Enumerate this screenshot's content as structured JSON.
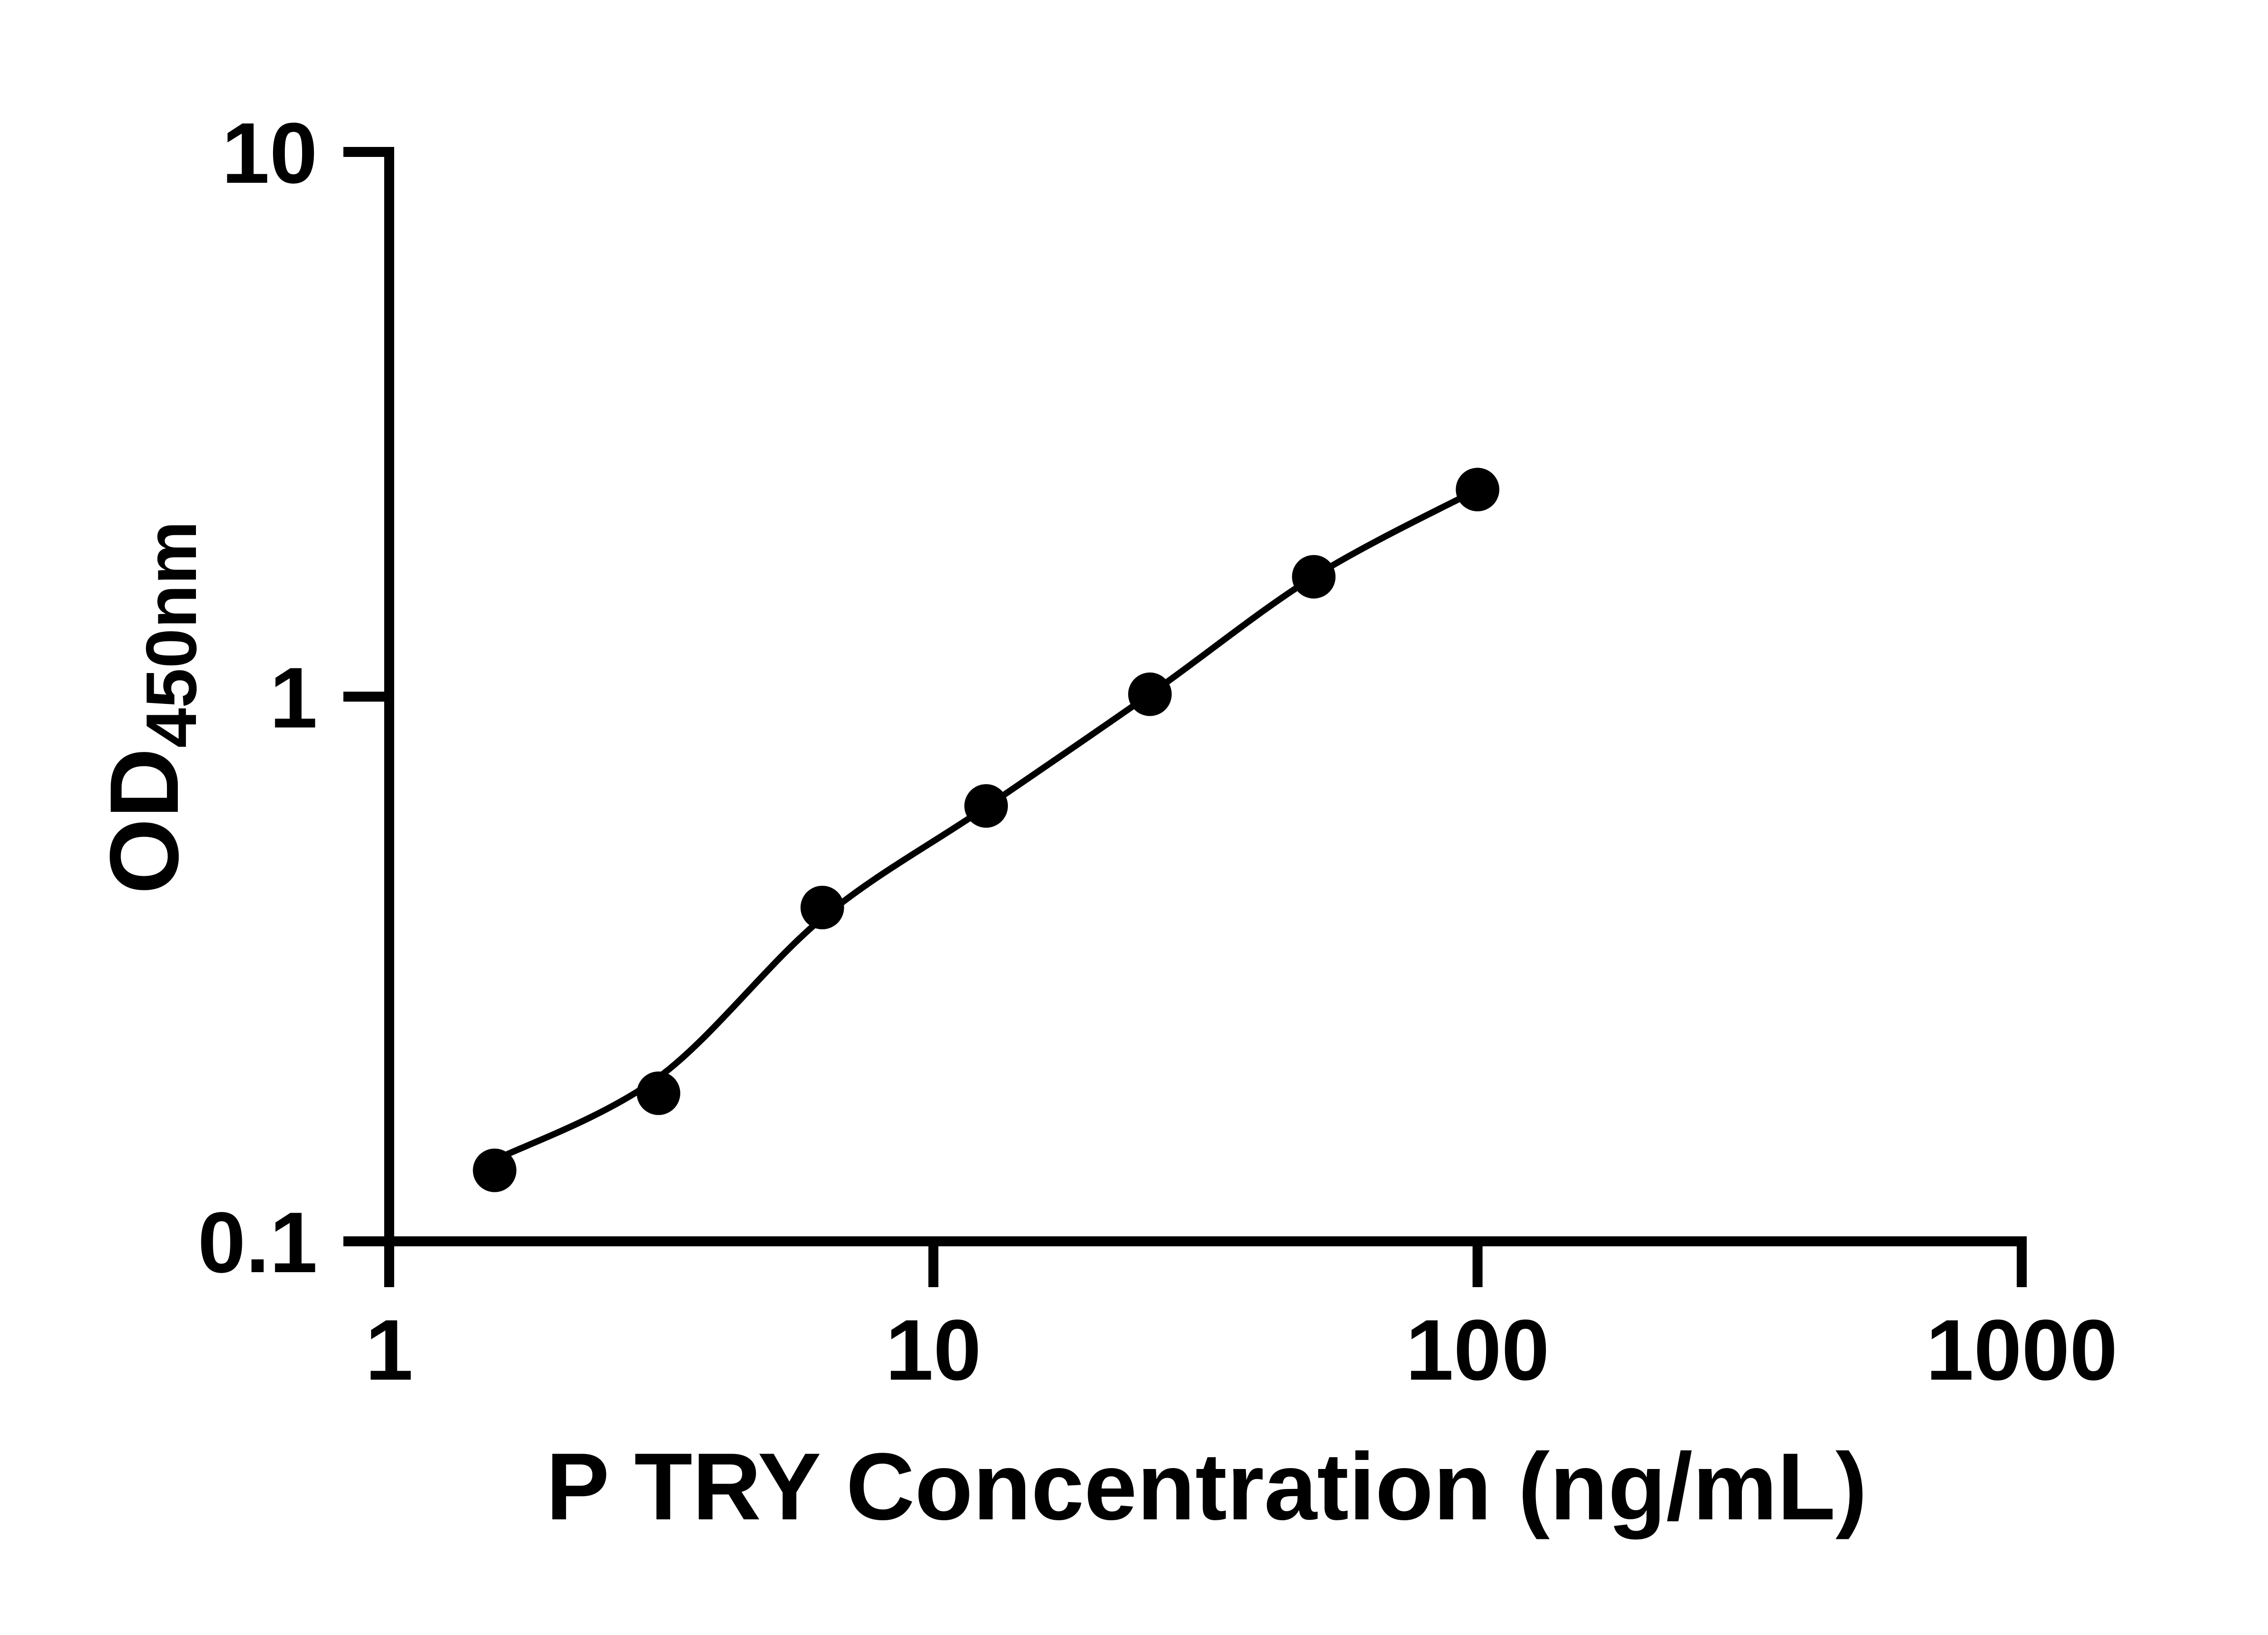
{
  "figure": {
    "background_color": "#ffffff",
    "ink_color": "#000000"
  },
  "chart_data": {
    "type": "scatter",
    "title": "",
    "xlabel": "P TRY Concentration (ng/mL)",
    "ylabel": {
      "main": "OD",
      "sub": "450nm"
    },
    "x_scale": "log",
    "y_scale": "log",
    "xlim": [
      1,
      1000
    ],
    "ylim": [
      0.1,
      10
    ],
    "grid": false,
    "legend": null,
    "x_ticks": [
      {
        "value": 1,
        "label": "1"
      },
      {
        "value": 10,
        "label": "10"
      },
      {
        "value": 100,
        "label": "100"
      },
      {
        "value": 1000,
        "label": "1000"
      }
    ],
    "y_ticks": [
      {
        "value": 10,
        "label": "10"
      },
      {
        "value": 1,
        "label": "1"
      },
      {
        "value": 0.1,
        "label": "0.1"
      }
    ],
    "series": [
      {
        "name": "standard-points",
        "type": "scatter",
        "marker": "circle",
        "color": "#000000",
        "x": [
          1.5625,
          3.125,
          6.25,
          12.5,
          25,
          50,
          100
        ],
        "y": [
          0.135,
          0.187,
          0.41,
          0.63,
          1.01,
          1.66,
          2.4
        ]
      },
      {
        "name": "fit-curve",
        "type": "line",
        "color": "#000000",
        "x": [
          1.5625,
          3.125,
          6.25,
          12.5,
          25,
          50,
          100
        ],
        "y": [
          0.141,
          0.2,
          0.392,
          0.627,
          1.01,
          1.66,
          2.4
        ]
      }
    ]
  }
}
